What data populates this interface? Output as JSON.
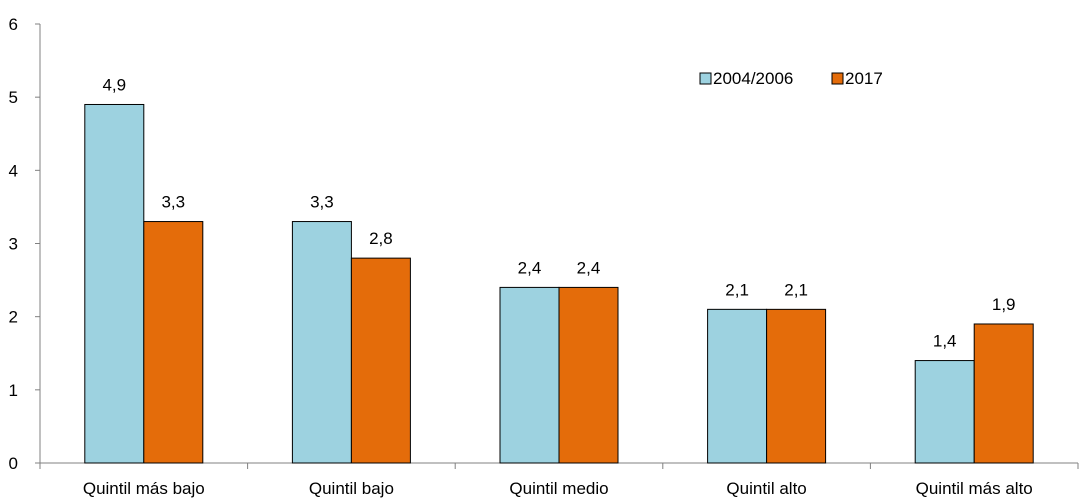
{
  "chart_data": {
    "type": "bar",
    "title": "",
    "xlabel": "",
    "ylabel": "",
    "ylim": [
      0,
      6
    ],
    "yticks": [
      "0",
      "1",
      "2",
      "3",
      "4",
      "5",
      "6"
    ],
    "grid": false,
    "legend_position": "top-right",
    "categories": [
      "Quintil más bajo",
      "Quintil bajo",
      "Quintil medio",
      "Quintil alto",
      "Quintil más alto"
    ],
    "series": [
      {
        "name": "2004/2006",
        "color": "#9DD2E0",
        "values": [
          4.9,
          3.3,
          2.4,
          2.1,
          1.4
        ],
        "labels": [
          "4,9",
          "3,3",
          "2,4",
          "2,1",
          "1,4"
        ]
      },
      {
        "name": "2017",
        "color": "#E46C0A",
        "values": [
          3.3,
          2.8,
          2.4,
          2.1,
          1.9
        ],
        "labels": [
          "3,3",
          "2,8",
          "2,4",
          "2,1",
          "1,9"
        ]
      }
    ]
  }
}
